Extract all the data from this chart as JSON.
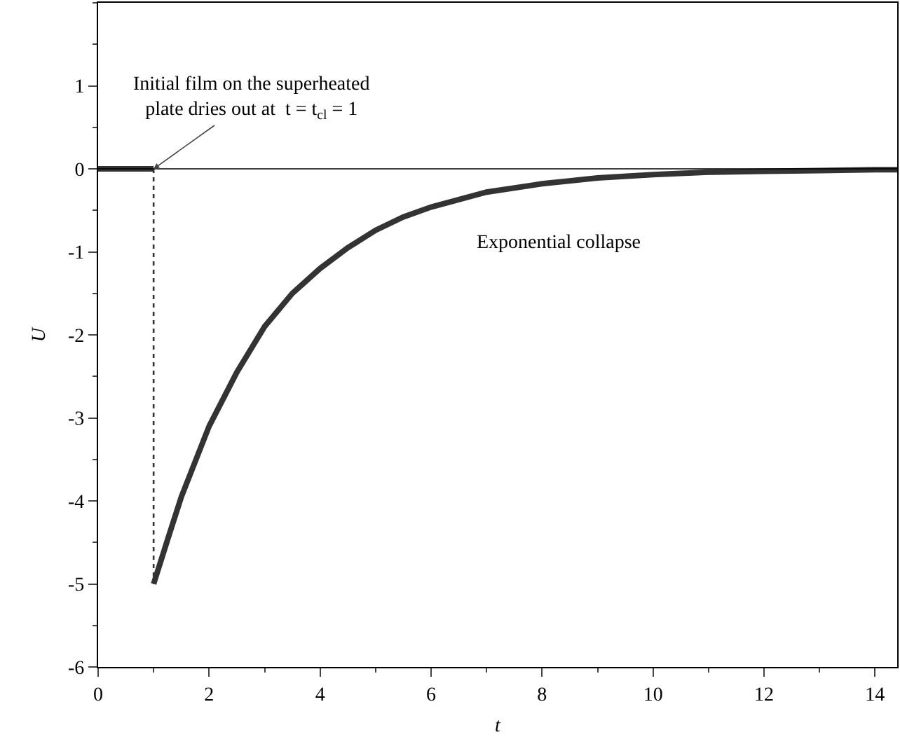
{
  "chart_data": {
    "type": "line",
    "xlabel": "t",
    "ylabel": "U",
    "xlim": [
      0,
      14.4
    ],
    "ylim": [
      -6,
      2
    ],
    "xticks": [
      0,
      2,
      4,
      6,
      8,
      10,
      12,
      14
    ],
    "yticks": [
      -6,
      -5,
      -4,
      -3,
      -2,
      -1,
      0,
      1
    ],
    "grid": false,
    "series": [
      {
        "color": "#333333",
        "x": [
          0,
          1
        ],
        "values": [
          0,
          0
        ]
      },
      {
        "color": "#333333",
        "x": [
          1,
          1.25,
          1.5,
          2,
          2.5,
          3,
          3.5,
          4,
          4.5,
          5,
          5.5,
          6,
          7,
          8,
          9,
          10,
          11,
          12,
          13,
          14,
          14.4
        ],
        "values": [
          -5,
          -4.47,
          -3.95,
          -3.1,
          -2.45,
          -1.9,
          -1.5,
          -1.2,
          -0.95,
          -0.74,
          -0.58,
          -0.46,
          -0.28,
          -0.18,
          -0.11,
          -0.07,
          -0.04,
          -0.03,
          -0.02,
          -0.01,
          -0.01
        ]
      },
      {
        "color": "#333333",
        "line_style": "dotted",
        "x": [
          1,
          1
        ],
        "values": [
          0,
          -5
        ]
      }
    ],
    "ref_lines": [
      {
        "axis": "y",
        "value": 0,
        "color": "#000000"
      }
    ],
    "annotations": [
      {
        "text": "Initial film on the superheated\nplate dries out at  t = t$_{cl}$ = 1",
        "x": 1,
        "y": 0
      },
      "Exponential collapse"
    ]
  }
}
